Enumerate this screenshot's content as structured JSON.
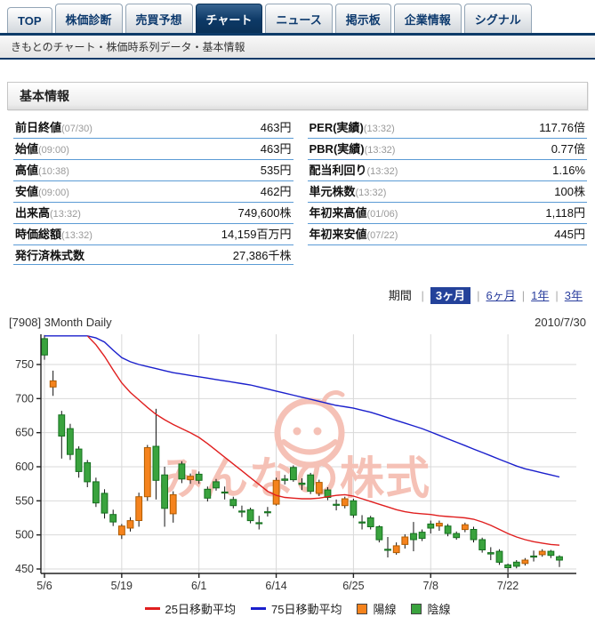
{
  "tabs": [
    {
      "name": "top",
      "label": "TOP",
      "active": false
    },
    {
      "name": "kabuka-shindan",
      "label": "株価診断",
      "active": false
    },
    {
      "name": "baibai-yoso",
      "label": "売買予想",
      "active": false
    },
    {
      "name": "chart",
      "label": "チャート",
      "active": true
    },
    {
      "name": "news",
      "label": "ニュース",
      "active": false
    },
    {
      "name": "keijiban",
      "label": "掲示板",
      "active": false
    },
    {
      "name": "kigyo-joho",
      "label": "企業情報",
      "active": false
    },
    {
      "name": "signal",
      "label": "シグナル",
      "active": false
    }
  ],
  "breadcrumb": "きもとのチャート・株価時系列データ・基本情報",
  "section_title": "基本情報",
  "info_table": {
    "left": [
      {
        "label": "前日終値",
        "note": "(07/30)",
        "value": "463円"
      },
      {
        "label": "始値",
        "note": "(09:00)",
        "value": "463円"
      },
      {
        "label": "高値",
        "note": "(10:38)",
        "value": "535円"
      },
      {
        "label": "安値",
        "note": "(09:00)",
        "value": "462円"
      },
      {
        "label": "出来高",
        "note": "(13:32)",
        "value": "749,600株"
      },
      {
        "label": "時価総額",
        "note": "(13:32)",
        "value": "14,159百万円"
      },
      {
        "label": "発行済株式数",
        "note": "",
        "value": "27,386千株"
      }
    ],
    "right": [
      {
        "label": "PER(実績)",
        "note": "(13:32)",
        "value": "117.76倍"
      },
      {
        "label": "PBR(実績)",
        "note": "(13:32)",
        "value": "0.77倍"
      },
      {
        "label": "配当利回り",
        "note": "(13:32)",
        "value": "1.16%"
      },
      {
        "label": "単元株数",
        "note": "(13:32)",
        "value": "100株"
      },
      {
        "label": "年初来高値",
        "note": "(01/06)",
        "value": "1,118円"
      },
      {
        "label": "年初来安値",
        "note": "(07/22)",
        "value": "445円"
      }
    ]
  },
  "period": {
    "label": "期間",
    "options": [
      {
        "label": "3ヶ月",
        "selected": true
      },
      {
        "label": "6ヶ月",
        "selected": false
      },
      {
        "label": "1年",
        "selected": false
      },
      {
        "label": "3年",
        "selected": false
      }
    ]
  },
  "chart_header": {
    "left": "[7908] 3Month Daily",
    "right": "2010/7/30"
  },
  "watermark": {
    "text": "みんなの株式",
    "color": "#f5c1b6"
  },
  "legend": [
    {
      "kind": "line",
      "color": "#e01f1f",
      "label": "25日移動平均"
    },
    {
      "kind": "line",
      "color": "#1a1fcc",
      "label": "75日移動平均"
    },
    {
      "kind": "box",
      "color": "#f5831d",
      "label": "陽線"
    },
    {
      "kind": "box",
      "color": "#3aa33e",
      "label": "陰線"
    }
  ],
  "chart_data": {
    "type": "candlestick",
    "date_range": "2010/5/6 - 2010/7/30",
    "y_ticks": [
      450,
      500,
      550,
      600,
      650,
      700,
      750
    ],
    "ylim": [
      444,
      793
    ],
    "x_ticks": [
      {
        "i": 0,
        "label": "5/6"
      },
      {
        "i": 9,
        "label": "5/19"
      },
      {
        "i": 18,
        "label": "6/1"
      },
      {
        "i": 27,
        "label": "6/14"
      },
      {
        "i": 36,
        "label": "6/25"
      },
      {
        "i": 45,
        "label": "7/8"
      },
      {
        "i": 54,
        "label": "7/22"
      }
    ],
    "ohlc": [
      [
        788,
        793,
        757,
        764
      ],
      [
        717,
        741,
        704,
        726
      ],
      [
        676,
        682,
        612,
        645
      ],
      [
        656,
        663,
        610,
        618
      ],
      [
        626,
        630,
        584,
        593
      ],
      [
        606,
        610,
        570,
        578
      ],
      [
        578,
        584,
        541,
        547
      ],
      [
        561,
        567,
        524,
        532
      ],
      [
        530,
        537,
        513,
        519
      ],
      [
        500,
        516,
        494,
        513
      ],
      [
        510,
        526,
        505,
        521
      ],
      [
        521,
        562,
        512,
        556
      ],
      [
        556,
        632,
        550,
        628
      ],
      [
        630,
        685,
        552,
        580
      ],
      [
        588,
        600,
        512,
        539
      ],
      [
        531,
        564,
        518,
        559
      ],
      [
        604,
        608,
        576,
        582
      ],
      [
        581,
        590,
        575,
        586
      ],
      [
        589,
        593,
        575,
        580
      ],
      [
        567,
        571,
        549,
        554
      ],
      [
        578,
        582,
        565,
        569
      ],
      [
        563,
        571,
        552,
        562
      ],
      [
        552,
        556,
        539,
        543
      ],
      [
        535,
        543,
        526,
        534
      ],
      [
        537,
        540,
        517,
        521
      ],
      [
        518,
        528,
        508,
        517
      ],
      [
        534,
        541,
        527,
        533
      ],
      [
        545,
        584,
        543,
        580
      ],
      [
        582,
        588,
        574,
        580
      ],
      [
        599,
        602,
        578,
        581
      ],
      [
        576,
        583,
        566,
        574
      ],
      [
        588,
        591,
        560,
        564
      ],
      [
        561,
        581,
        557,
        577
      ],
      [
        566,
        570,
        551,
        555
      ],
      [
        545,
        552,
        536,
        544
      ],
      [
        543,
        556,
        539,
        553
      ],
      [
        550,
        553,
        525,
        529
      ],
      [
        519,
        529,
        508,
        518
      ],
      [
        525,
        528,
        508,
        512
      ],
      [
        512,
        514,
        489,
        493
      ],
      [
        479,
        497,
        467,
        478
      ],
      [
        474,
        489,
        471,
        484
      ],
      [
        486,
        501,
        480,
        497
      ],
      [
        502,
        519,
        476,
        493
      ],
      [
        504,
        508,
        491,
        495
      ],
      [
        516,
        521,
        502,
        510
      ],
      [
        513,
        521,
        506,
        517
      ],
      [
        513,
        516,
        498,
        502
      ],
      [
        502,
        505,
        493,
        496
      ],
      [
        508,
        518,
        504,
        515
      ],
      [
        508,
        512,
        489,
        493
      ],
      [
        493,
        496,
        474,
        478
      ],
      [
        474,
        482,
        463,
        472
      ],
      [
        476,
        479,
        456,
        460
      ],
      [
        456,
        458,
        445,
        452
      ],
      [
        460,
        463,
        451,
        454
      ],
      [
        458,
        466,
        455,
        463
      ],
      [
        469,
        477,
        461,
        468
      ],
      [
        471,
        479,
        468,
        476
      ],
      [
        476,
        478,
        466,
        470
      ],
      [
        468,
        470,
        453,
        463
      ]
    ],
    "ma25": [
      null,
      null,
      null,
      null,
      null,
      792,
      779,
      762,
      742,
      723,
      709,
      698,
      687,
      677,
      669,
      662,
      656,
      650,
      643,
      634,
      624,
      614,
      604,
      594,
      584,
      574,
      564,
      558,
      555,
      554,
      553,
      553,
      554,
      556,
      558,
      559,
      557,
      553,
      549,
      545,
      541,
      537,
      534,
      532,
      531,
      530,
      528,
      527,
      526,
      525,
      523,
      519,
      514,
      508,
      502,
      497,
      493,
      490,
      488,
      486,
      485
    ],
    "ma75": [
      792,
      792,
      792,
      792,
      792,
      792,
      789,
      783,
      771,
      760,
      754,
      750,
      747,
      744,
      741,
      738,
      736,
      734,
      732,
      730,
      728,
      726,
      724,
      722,
      720,
      717,
      714,
      711,
      708,
      705,
      702,
      699,
      696,
      693,
      690,
      688,
      686,
      683,
      680,
      676,
      672,
      668,
      664,
      660,
      656,
      651,
      646,
      641,
      636,
      631,
      626,
      621,
      616,
      611,
      606,
      601,
      597,
      594,
      591,
      588,
      585
    ],
    "bull_color": "#f5831d",
    "bull_stroke": "#b05c00",
    "bear_color": "#3aa33e",
    "bear_stroke": "#15701f",
    "ma25_color": "#e01f1f",
    "ma75_color": "#1a1fcc",
    "grid_color": "#d9d9d9",
    "axis_color": "#222",
    "legend_position": "bottom"
  }
}
